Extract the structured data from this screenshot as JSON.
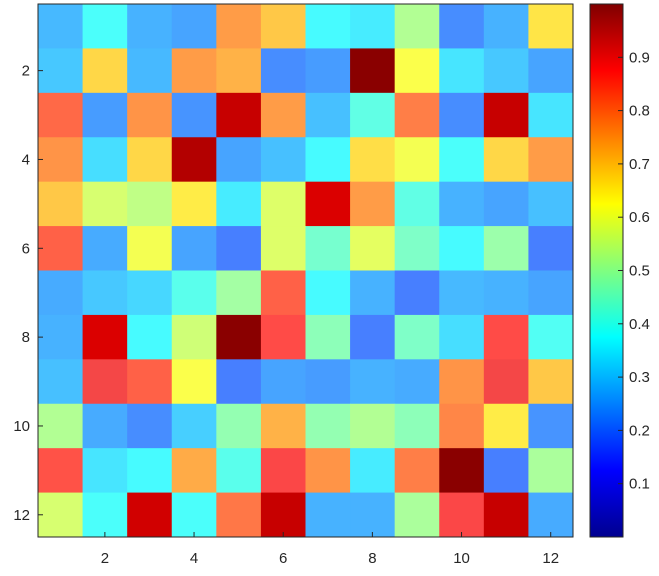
{
  "chart_data": {
    "type": "heatmap",
    "colormap": "jet",
    "rows": 12,
    "cols": 12,
    "values": [
      [
        0.28,
        0.38,
        0.27,
        0.25,
        0.76,
        0.7,
        0.37,
        0.35,
        0.52,
        0.22,
        0.27,
        0.66
      ],
      [
        0.3,
        0.68,
        0.28,
        0.76,
        0.73,
        0.22,
        0.24,
        0.99,
        0.62,
        0.34,
        0.3,
        0.25
      ],
      [
        0.83,
        0.24,
        0.77,
        0.23,
        0.93,
        0.76,
        0.29,
        0.41,
        0.8,
        0.22,
        0.93,
        0.34
      ],
      [
        0.77,
        0.33,
        0.68,
        0.95,
        0.25,
        0.29,
        0.37,
        0.67,
        0.61,
        0.38,
        0.68,
        0.76
      ],
      [
        0.7,
        0.57,
        0.54,
        0.65,
        0.35,
        0.58,
        0.91,
        0.76,
        0.41,
        0.27,
        0.25,
        0.29
      ],
      [
        0.84,
        0.26,
        0.61,
        0.25,
        0.2,
        0.58,
        0.44,
        0.59,
        0.45,
        0.37,
        0.49,
        0.2
      ],
      [
        0.26,
        0.3,
        0.32,
        0.4,
        0.5,
        0.84,
        0.37,
        0.27,
        0.2,
        0.28,
        0.27,
        0.25
      ],
      [
        0.27,
        0.91,
        0.37,
        0.56,
        0.99,
        0.87,
        0.47,
        0.2,
        0.45,
        0.33,
        0.87,
        0.39
      ],
      [
        0.29,
        0.89,
        0.84,
        0.62,
        0.2,
        0.25,
        0.24,
        0.27,
        0.26,
        0.77,
        0.89,
        0.7
      ],
      [
        0.52,
        0.26,
        0.22,
        0.31,
        0.48,
        0.73,
        0.48,
        0.52,
        0.47,
        0.79,
        0.65,
        0.23
      ],
      [
        0.86,
        0.34,
        0.37,
        0.74,
        0.4,
        0.88,
        0.77,
        0.35,
        0.8,
        0.99,
        0.2,
        0.51
      ],
      [
        0.57,
        0.38,
        0.92,
        0.38,
        0.81,
        0.93,
        0.27,
        0.27,
        0.51,
        0.88,
        0.93,
        0.26
      ]
    ],
    "x_ticks": [
      2,
      4,
      6,
      8,
      10,
      12
    ],
    "y_ticks": [
      2,
      4,
      6,
      8,
      10,
      12
    ],
    "colorbar_ticks": [
      0.1,
      0.2,
      0.3,
      0.4,
      0.5,
      0.6,
      0.7,
      0.8,
      0.9
    ],
    "colorbar_range": [
      0,
      1
    ],
    "title": "",
    "xlabel": "",
    "ylabel": ""
  }
}
